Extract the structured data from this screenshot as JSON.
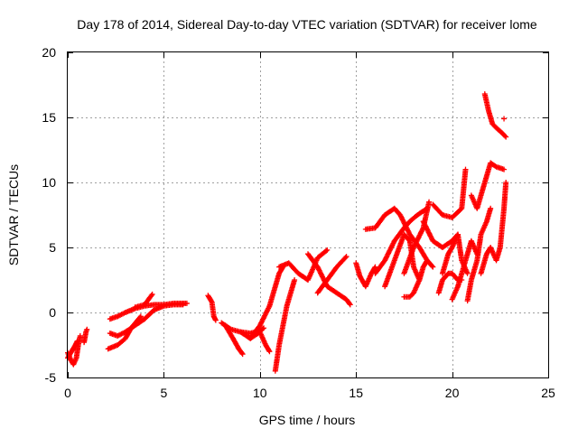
{
  "chart_data": {
    "type": "scatter",
    "title": "Day 178 of 2014, Sidereal Day-to-day VTEC variation (SDTVAR) for receiver lome",
    "xlabel": "GPS time / hours",
    "ylabel": "SDTVAR / TECUs",
    "xlim": [
      0,
      25
    ],
    "ylim": [
      -5,
      20
    ],
    "xticks": [
      "0",
      "5",
      "10",
      "15",
      "20",
      "25"
    ],
    "yticks": [
      "-5",
      "0",
      "5",
      "10",
      "15",
      "20"
    ],
    "grid": true,
    "marker": "+",
    "color": "#ff0000",
    "series": [
      {
        "name": "SDTVAR",
        "segments": [
          [
            [
              0.0,
              -3.1
            ],
            [
              0.15,
              -3.6
            ],
            [
              0.3,
              -4.0
            ],
            [
              0.45,
              -3.5
            ],
            [
              0.55,
              -2.5
            ],
            [
              0.65,
              -1.8
            ]
          ],
          [
            [
              0.0,
              -3.5
            ],
            [
              0.2,
              -3.0
            ],
            [
              0.4,
              -2.5
            ],
            [
              0.5,
              -2.2
            ]
          ],
          [
            [
              0.85,
              -2.3
            ],
            [
              0.95,
              -1.5
            ],
            [
              1.0,
              -1.3
            ]
          ],
          [
            [
              2.2,
              -0.5
            ],
            [
              2.6,
              -0.3
            ],
            [
              3.0,
              0.0
            ],
            [
              3.5,
              0.3
            ],
            [
              4.0,
              0.5
            ],
            [
              4.5,
              0.6
            ],
            [
              5.0,
              0.6
            ],
            [
              5.5,
              0.7
            ],
            [
              6.0,
              0.7
            ],
            [
              6.2,
              0.7
            ]
          ],
          [
            [
              2.2,
              -1.6
            ],
            [
              2.6,
              -1.8
            ],
            [
              3.0,
              -1.5
            ],
            [
              3.5,
              -1.0
            ],
            [
              4.0,
              -0.5
            ],
            [
              4.5,
              0.2
            ],
            [
              5.0,
              0.5
            ],
            [
              5.5,
              0.6
            ],
            [
              6.0,
              0.6
            ]
          ],
          [
            [
              2.1,
              -2.8
            ],
            [
              2.6,
              -2.5
            ],
            [
              3.0,
              -2.0
            ],
            [
              3.3,
              -1.2
            ],
            [
              3.8,
              -0.3
            ]
          ],
          [
            [
              3.5,
              0.4
            ],
            [
              4.0,
              0.6
            ],
            [
              4.4,
              1.4
            ]
          ],
          [
            [
              7.3,
              1.3
            ],
            [
              7.5,
              0.8
            ],
            [
              7.6,
              -0.3
            ],
            [
              7.7,
              -0.6
            ]
          ],
          [
            [
              8.0,
              -0.8
            ],
            [
              8.5,
              -1.3
            ],
            [
              9.0,
              -1.5
            ],
            [
              9.5,
              -1.6
            ],
            [
              10.0,
              -1.4
            ],
            [
              10.2,
              -1.2
            ]
          ],
          [
            [
              8.2,
              -1.0
            ],
            [
              8.6,
              -2.0
            ],
            [
              8.9,
              -2.8
            ],
            [
              9.1,
              -3.2
            ]
          ],
          [
            [
              9.0,
              -1.5
            ],
            [
              9.5,
              -2.0
            ],
            [
              10.0,
              -1.0
            ],
            [
              10.5,
              0.5
            ],
            [
              10.8,
              2.0
            ],
            [
              11.0,
              3.0
            ],
            [
              11.2,
              3.5
            ]
          ],
          [
            [
              9.5,
              -2.0
            ],
            [
              10.0,
              -1.5
            ],
            [
              10.3,
              -2.5
            ],
            [
              10.5,
              -3.0
            ]
          ],
          [
            [
              10.8,
              -4.5
            ],
            [
              11.0,
              -2.5
            ],
            [
              11.2,
              -1.0
            ],
            [
              11.4,
              0.5
            ],
            [
              11.6,
              1.5
            ],
            [
              11.8,
              2.5
            ]
          ],
          [
            [
              11.0,
              3.5
            ],
            [
              11.5,
              3.8
            ],
            [
              12.0,
              3.0
            ],
            [
              12.5,
              2.5
            ],
            [
              12.8,
              3.5
            ],
            [
              13.0,
              4.2
            ],
            [
              13.5,
              4.8
            ]
          ],
          [
            [
              12.5,
              4.5
            ],
            [
              13.0,
              3.5
            ],
            [
              13.5,
              2.0
            ],
            [
              14.0,
              1.5
            ],
            [
              14.5,
              1.0
            ],
            [
              14.7,
              0.6
            ]
          ],
          [
            [
              13.0,
              1.5
            ],
            [
              13.5,
              2.5
            ],
            [
              14.0,
              3.5
            ],
            [
              14.5,
              4.3
            ]
          ],
          [
            [
              15.0,
              3.8
            ],
            [
              15.2,
              2.8
            ],
            [
              15.5,
              2.0
            ],
            [
              15.8,
              3.0
            ],
            [
              16.0,
              3.5
            ]
          ],
          [
            [
              15.5,
              6.4
            ],
            [
              16.0,
              6.5
            ],
            [
              16.5,
              7.5
            ],
            [
              17.0,
              8.0
            ],
            [
              17.3,
              7.5
            ],
            [
              17.8,
              6.0
            ],
            [
              18.3,
              5.0
            ],
            [
              18.7,
              4.0
            ],
            [
              19.0,
              3.5
            ]
          ],
          [
            [
              16.0,
              3.0
            ],
            [
              16.5,
              4.0
            ],
            [
              17.0,
              5.5
            ],
            [
              17.5,
              6.5
            ],
            [
              17.8,
              7.0
            ],
            [
              18.2,
              7.5
            ],
            [
              18.7,
              8.0
            ]
          ],
          [
            [
              16.5,
              2.0
            ],
            [
              17.0,
              4.0
            ],
            [
              17.5,
              6.0
            ],
            [
              17.8,
              5.5
            ],
            [
              18.0,
              3.5
            ],
            [
              18.3,
              2.5
            ]
          ],
          [
            [
              17.5,
              3.0
            ],
            [
              18.0,
              5.0
            ],
            [
              18.5,
              6.5
            ],
            [
              18.8,
              8.5
            ]
          ],
          [
            [
              17.5,
              1.2
            ],
            [
              17.8,
              1.2
            ],
            [
              18.0,
              1.5
            ],
            [
              18.3,
              2.5
            ],
            [
              18.5,
              3.5
            ],
            [
              18.7,
              4.0
            ]
          ],
          [
            [
              18.5,
              7.0
            ],
            [
              19.0,
              5.5
            ],
            [
              19.5,
              5.0
            ],
            [
              20.0,
              5.5
            ],
            [
              20.3,
              6.0
            ]
          ],
          [
            [
              19.0,
              8.3
            ],
            [
              19.5,
              7.5
            ],
            [
              20.0,
              7.3
            ],
            [
              20.5,
              8.0
            ],
            [
              20.7,
              11.0
            ]
          ],
          [
            [
              19.3,
              1.5
            ],
            [
              19.5,
              2.5
            ],
            [
              19.8,
              3.0
            ],
            [
              20.0,
              3.0
            ],
            [
              20.3,
              2.5
            ],
            [
              20.5,
              2.5
            ]
          ],
          [
            [
              19.5,
              3.0
            ],
            [
              19.8,
              4.5
            ],
            [
              20.0,
              5.0
            ],
            [
              20.3,
              6.0
            ],
            [
              20.5,
              4.0
            ],
            [
              20.8,
              3.0
            ]
          ],
          [
            [
              20.0,
              1.0
            ],
            [
              20.3,
              2.0
            ],
            [
              20.7,
              4.0
            ],
            [
              21.0,
              5.5
            ],
            [
              21.3,
              4.5
            ]
          ],
          [
            [
              20.8,
              0.9
            ],
            [
              21.0,
              2.5
            ],
            [
              21.3,
              4.0
            ],
            [
              21.5,
              6.0
            ],
            [
              21.8,
              7.0
            ],
            [
              22.0,
              8.0
            ]
          ],
          [
            [
              21.0,
              9.0
            ],
            [
              21.3,
              8.0
            ],
            [
              21.5,
              9.0
            ],
            [
              21.8,
              10.5
            ],
            [
              22.0,
              11.5
            ],
            [
              22.3,
              11.2
            ],
            [
              22.7,
              11.0
            ]
          ],
          [
            [
              21.5,
              3.0
            ],
            [
              21.8,
              4.5
            ],
            [
              22.0,
              5.0
            ],
            [
              22.3,
              4.0
            ],
            [
              22.5,
              5.0
            ],
            [
              22.7,
              8.0
            ],
            [
              22.8,
              10.0
            ]
          ],
          [
            [
              21.7,
              16.8
            ],
            [
              21.9,
              15.5
            ],
            [
              22.1,
              14.5
            ],
            [
              22.3,
              14.2
            ],
            [
              22.6,
              13.8
            ],
            [
              22.8,
              13.5
            ]
          ],
          [
            [
              22.7,
              14.9
            ]
          ]
        ]
      }
    ]
  }
}
